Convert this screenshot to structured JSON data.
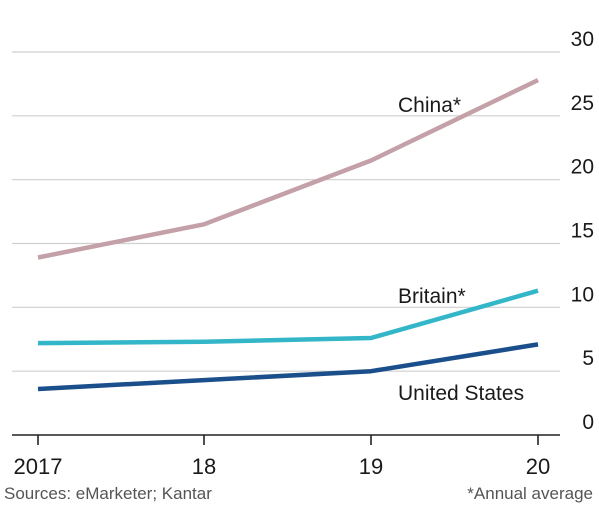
{
  "footer": {
    "source": "Sources: eMarketer; Kantar",
    "note": "*Annual average"
  },
  "colors": {
    "china": "#c4a1a8",
    "britain": "#34b6c9",
    "united_states": "#1b4f8c",
    "grid": "#cfcfcf",
    "axis": "#222222",
    "text": "#1a1a1a"
  },
  "chart_data": {
    "type": "line",
    "x": [
      "2017",
      "18",
      "19",
      "20"
    ],
    "x_tick_labels": [
      "2017",
      "18",
      "19",
      "20"
    ],
    "ylim": [
      0,
      30
    ],
    "y_ticks": [
      0,
      5,
      10,
      15,
      20,
      25,
      30
    ],
    "y_axis_side": "right",
    "grid": true,
    "series": [
      {
        "name": "China*",
        "key": "china",
        "values": [
          13.9,
          16.5,
          21.5,
          27.8
        ]
      },
      {
        "name": "Britain*",
        "key": "britain",
        "values": [
          7.2,
          7.3,
          7.6,
          11.3
        ]
      },
      {
        "name": "United States",
        "key": "united_states",
        "values": [
          3.6,
          4.3,
          5.0,
          7.1
        ]
      }
    ]
  }
}
